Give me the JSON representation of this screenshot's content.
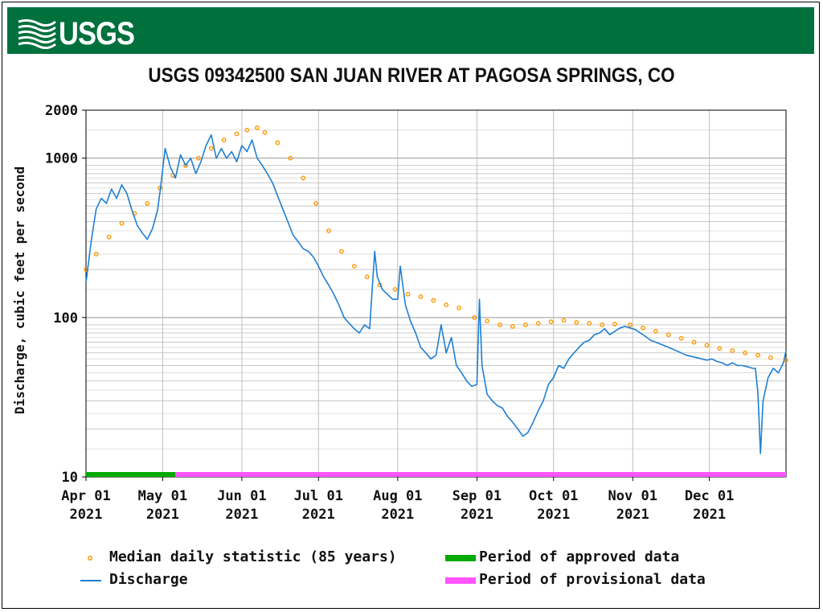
{
  "header": {
    "agency": "USGS",
    "banner_color": "#00703c"
  },
  "chart_data": {
    "type": "line",
    "title": "USGS 09342500 SAN JUAN RIVER AT PAGOSA SPRINGS, CO",
    "xlabel": "",
    "ylabel": "Discharge, cubic feet per second",
    "yscale": "log",
    "ylim": [
      10,
      2000
    ],
    "xlim": [
      "2021-04-01",
      "2021-12-31"
    ],
    "grid": true,
    "legend_position": "bottom",
    "x_ticks": [
      {
        "date": "2021-04-01",
        "label": "Apr 01",
        "year": "2021"
      },
      {
        "date": "2021-05-01",
        "label": "May 01",
        "year": "2021"
      },
      {
        "date": "2021-06-01",
        "label": "Jun 01",
        "year": "2021"
      },
      {
        "date": "2021-07-01",
        "label": "Jul 01",
        "year": "2021"
      },
      {
        "date": "2021-08-01",
        "label": "Aug 01",
        "year": "2021"
      },
      {
        "date": "2021-09-01",
        "label": "Sep 01",
        "year": "2021"
      },
      {
        "date": "2021-10-01",
        "label": "Oct 01",
        "year": "2021"
      },
      {
        "date": "2021-11-01",
        "label": "Nov 01",
        "year": "2021"
      },
      {
        "date": "2021-12-01",
        "label": "Dec 01",
        "year": "2021"
      }
    ],
    "y_ticks": [
      {
        "value": 2000,
        "label": "2000"
      },
      {
        "value": 1000,
        "label": "1000"
      },
      {
        "value": 100,
        "label": "100"
      },
      {
        "value": 10,
        "label": "10"
      }
    ],
    "series": [
      {
        "name": "Discharge",
        "color": "#1f7fd2",
        "style": "line",
        "points": [
          [
            "2021-04-01",
            165
          ],
          [
            "2021-04-03",
            300
          ],
          [
            "2021-04-05",
            480
          ],
          [
            "2021-04-07",
            560
          ],
          [
            "2021-04-09",
            520
          ],
          [
            "2021-04-11",
            640
          ],
          [
            "2021-04-13",
            560
          ],
          [
            "2021-04-15",
            680
          ],
          [
            "2021-04-17",
            600
          ],
          [
            "2021-04-19",
            470
          ],
          [
            "2021-04-21",
            380
          ],
          [
            "2021-04-23",
            340
          ],
          [
            "2021-04-25",
            310
          ],
          [
            "2021-04-27",
            360
          ],
          [
            "2021-04-29",
            470
          ],
          [
            "2021-04-30",
            620
          ],
          [
            "2021-05-02",
            1150
          ],
          [
            "2021-05-04",
            880
          ],
          [
            "2021-05-06",
            750
          ],
          [
            "2021-05-08",
            1050
          ],
          [
            "2021-05-10",
            900
          ],
          [
            "2021-05-12",
            1000
          ],
          [
            "2021-05-14",
            800
          ],
          [
            "2021-05-16",
            950
          ],
          [
            "2021-05-18",
            1200
          ],
          [
            "2021-05-20",
            1400
          ],
          [
            "2021-05-22",
            1000
          ],
          [
            "2021-05-24",
            1150
          ],
          [
            "2021-05-26",
            1000
          ],
          [
            "2021-05-28",
            1100
          ],
          [
            "2021-05-30",
            950
          ],
          [
            "2021-06-01",
            1200
          ],
          [
            "2021-06-03",
            1100
          ],
          [
            "2021-06-05",
            1300
          ],
          [
            "2021-06-07",
            1000
          ],
          [
            "2021-06-09",
            900
          ],
          [
            "2021-06-11",
            800
          ],
          [
            "2021-06-13",
            700
          ],
          [
            "2021-06-15",
            580
          ],
          [
            "2021-06-17",
            480
          ],
          [
            "2021-06-19",
            400
          ],
          [
            "2021-06-21",
            330
          ],
          [
            "2021-06-23",
            300
          ],
          [
            "2021-06-25",
            270
          ],
          [
            "2021-06-27",
            260
          ],
          [
            "2021-06-29",
            240
          ],
          [
            "2021-07-01",
            210
          ],
          [
            "2021-07-03",
            180
          ],
          [
            "2021-07-05",
            160
          ],
          [
            "2021-07-07",
            140
          ],
          [
            "2021-07-09",
            120
          ],
          [
            "2021-07-11",
            100
          ],
          [
            "2021-07-13",
            92
          ],
          [
            "2021-07-15",
            85
          ],
          [
            "2021-07-17",
            80
          ],
          [
            "2021-07-19",
            90
          ],
          [
            "2021-07-21",
            85
          ],
          [
            "2021-07-23",
            260
          ],
          [
            "2021-07-24",
            180
          ],
          [
            "2021-07-26",
            150
          ],
          [
            "2021-07-28",
            140
          ],
          [
            "2021-07-30",
            130
          ],
          [
            "2021-08-01",
            130
          ],
          [
            "2021-08-02",
            210
          ],
          [
            "2021-08-04",
            120
          ],
          [
            "2021-08-06",
            95
          ],
          [
            "2021-08-08",
            80
          ],
          [
            "2021-08-10",
            65
          ],
          [
            "2021-08-12",
            60
          ],
          [
            "2021-08-14",
            55
          ],
          [
            "2021-08-16",
            58
          ],
          [
            "2021-08-18",
            90
          ],
          [
            "2021-08-20",
            60
          ],
          [
            "2021-08-22",
            75
          ],
          [
            "2021-08-24",
            50
          ],
          [
            "2021-08-26",
            45
          ],
          [
            "2021-08-28",
            40
          ],
          [
            "2021-08-30",
            37
          ],
          [
            "2021-09-01",
            38
          ],
          [
            "2021-09-02",
            130
          ],
          [
            "2021-09-03",
            50
          ],
          [
            "2021-09-05",
            33
          ],
          [
            "2021-09-07",
            30
          ],
          [
            "2021-09-09",
            28
          ],
          [
            "2021-09-11",
            27
          ],
          [
            "2021-09-13",
            24
          ],
          [
            "2021-09-15",
            22
          ],
          [
            "2021-09-17",
            20
          ],
          [
            "2021-09-19",
            18
          ],
          [
            "2021-09-21",
            19
          ],
          [
            "2021-09-23",
            22
          ],
          [
            "2021-09-25",
            26
          ],
          [
            "2021-09-27",
            30
          ],
          [
            "2021-09-29",
            38
          ],
          [
            "2021-10-01",
            42
          ],
          [
            "2021-10-03",
            50
          ],
          [
            "2021-10-05",
            48
          ],
          [
            "2021-10-07",
            55
          ],
          [
            "2021-10-09",
            60
          ],
          [
            "2021-10-11",
            65
          ],
          [
            "2021-10-13",
            70
          ],
          [
            "2021-10-15",
            72
          ],
          [
            "2021-10-17",
            78
          ],
          [
            "2021-10-19",
            80
          ],
          [
            "2021-10-21",
            85
          ],
          [
            "2021-10-23",
            78
          ],
          [
            "2021-10-25",
            82
          ],
          [
            "2021-10-27",
            86
          ],
          [
            "2021-10-29",
            88
          ],
          [
            "2021-10-31",
            86
          ],
          [
            "2021-11-02",
            84
          ],
          [
            "2021-11-04",
            80
          ],
          [
            "2021-11-06",
            76
          ],
          [
            "2021-11-08",
            72
          ],
          [
            "2021-11-10",
            70
          ],
          [
            "2021-11-12",
            68
          ],
          [
            "2021-11-14",
            66
          ],
          [
            "2021-11-16",
            64
          ],
          [
            "2021-11-18",
            62
          ],
          [
            "2021-11-20",
            60
          ],
          [
            "2021-11-22",
            58
          ],
          [
            "2021-11-24",
            57
          ],
          [
            "2021-11-26",
            56
          ],
          [
            "2021-11-28",
            55
          ],
          [
            "2021-11-30",
            54
          ],
          [
            "2021-12-02",
            55
          ],
          [
            "2021-12-04",
            53
          ],
          [
            "2021-12-06",
            52
          ],
          [
            "2021-12-08",
            50
          ],
          [
            "2021-12-10",
            52
          ],
          [
            "2021-12-12",
            50
          ],
          [
            "2021-12-14",
            50
          ],
          [
            "2021-12-16",
            49
          ],
          [
            "2021-12-18",
            48
          ],
          [
            "2021-12-19",
            48
          ],
          [
            "2021-12-20",
            34
          ],
          [
            "2021-12-21",
            14
          ],
          [
            "2021-12-22",
            30
          ],
          [
            "2021-12-24",
            42
          ],
          [
            "2021-12-26",
            48
          ],
          [
            "2021-12-28",
            45
          ],
          [
            "2021-12-30",
            52
          ],
          [
            "2021-12-31",
            62
          ]
        ]
      },
      {
        "name": "Median daily statistic (85 years)",
        "color": "#ff9900",
        "style": "dots",
        "points": [
          [
            "2021-04-01",
            200
          ],
          [
            "2021-04-05",
            250
          ],
          [
            "2021-04-10",
            320
          ],
          [
            "2021-04-15",
            390
          ],
          [
            "2021-04-20",
            450
          ],
          [
            "2021-04-25",
            520
          ],
          [
            "2021-04-30",
            650
          ],
          [
            "2021-05-05",
            780
          ],
          [
            "2021-05-10",
            900
          ],
          [
            "2021-05-15",
            1000
          ],
          [
            "2021-05-20",
            1150
          ],
          [
            "2021-05-25",
            1300
          ],
          [
            "2021-05-30",
            1420
          ],
          [
            "2021-06-03",
            1500
          ],
          [
            "2021-06-07",
            1550
          ],
          [
            "2021-06-10",
            1450
          ],
          [
            "2021-06-15",
            1250
          ],
          [
            "2021-06-20",
            1000
          ],
          [
            "2021-06-25",
            750
          ],
          [
            "2021-06-30",
            520
          ],
          [
            "2021-07-05",
            350
          ],
          [
            "2021-07-10",
            260
          ],
          [
            "2021-07-15",
            210
          ],
          [
            "2021-07-20",
            180
          ],
          [
            "2021-07-25",
            160
          ],
          [
            "2021-07-31",
            150
          ],
          [
            "2021-08-05",
            140
          ],
          [
            "2021-08-10",
            135
          ],
          [
            "2021-08-15",
            128
          ],
          [
            "2021-08-20",
            120
          ],
          [
            "2021-08-25",
            115
          ],
          [
            "2021-08-31",
            100
          ],
          [
            "2021-09-05",
            95
          ],
          [
            "2021-09-10",
            90
          ],
          [
            "2021-09-15",
            88
          ],
          [
            "2021-09-20",
            90
          ],
          [
            "2021-09-25",
            92
          ],
          [
            "2021-09-30",
            94
          ],
          [
            "2021-10-05",
            96
          ],
          [
            "2021-10-10",
            93
          ],
          [
            "2021-10-15",
            92
          ],
          [
            "2021-10-20",
            90
          ],
          [
            "2021-10-25",
            91
          ],
          [
            "2021-10-31",
            90
          ],
          [
            "2021-11-05",
            86
          ],
          [
            "2021-11-10",
            82
          ],
          [
            "2021-11-15",
            78
          ],
          [
            "2021-11-20",
            74
          ],
          [
            "2021-11-25",
            70
          ],
          [
            "2021-11-30",
            67
          ],
          [
            "2021-12-05",
            64
          ],
          [
            "2021-12-10",
            62
          ],
          [
            "2021-12-15",
            60
          ],
          [
            "2021-12-20",
            58
          ],
          [
            "2021-12-25",
            56
          ],
          [
            "2021-12-31",
            54
          ]
        ]
      }
    ],
    "periods": [
      {
        "name": "Period of approved data",
        "color": "#00aa00",
        "start": "2021-04-01",
        "end": "2021-05-06"
      },
      {
        "name": "Period of provisional data",
        "color": "#ff55ff",
        "start": "2021-05-06",
        "end": "2021-12-31"
      }
    ]
  },
  "legend": {
    "median_label": "Median daily statistic (85 years)",
    "discharge_label": "Discharge",
    "approved_label": "Period of approved data",
    "provisional_label": "Period of provisional data"
  }
}
